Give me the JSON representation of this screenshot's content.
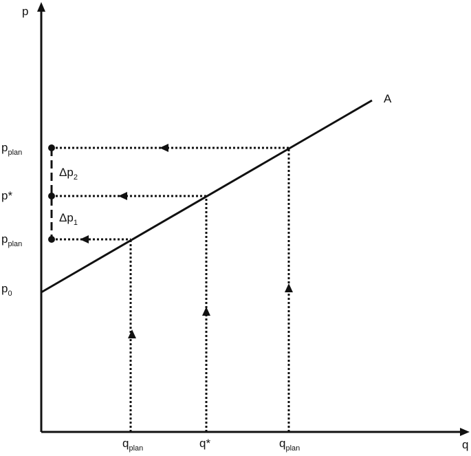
{
  "axis_labels": {
    "y": "p",
    "x": "q"
  },
  "curve": {
    "label": "A"
  },
  "price_labels": [
    {
      "main": "p",
      "sub": "plan"
    },
    {
      "main": "p*"
    },
    {
      "main": "p",
      "sub": "plan"
    },
    {
      "main": "p",
      "sub": "0"
    }
  ],
  "quantity_labels": [
    {
      "main": "q",
      "sub": "plan"
    },
    {
      "main": "q*"
    },
    {
      "main": "q",
      "sub": "plan"
    }
  ],
  "delta_labels": [
    {
      "main": "Δp",
      "sub": "2"
    },
    {
      "main": "Δp",
      "sub": "1"
    }
  ]
}
